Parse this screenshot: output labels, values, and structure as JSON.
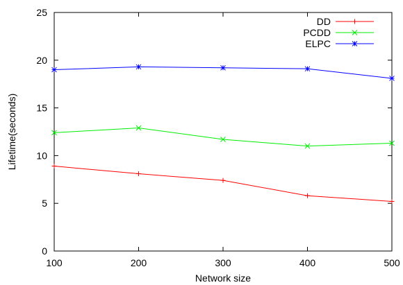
{
  "chart_data": {
    "type": "line",
    "xlabel": "Network size",
    "ylabel": "Lifetime(seconds)",
    "x": [
      100,
      200,
      300,
      400,
      500
    ],
    "xlim": [
      100,
      500
    ],
    "ylim": [
      0,
      25
    ],
    "x_ticks": [
      "100",
      "200",
      "300",
      "400",
      "500"
    ],
    "y_ticks": [
      "0",
      "5",
      "10",
      "15",
      "20",
      "25"
    ],
    "grid": false,
    "legend_position": "top-right",
    "series": [
      {
        "name": "DD",
        "color": "#ff0000",
        "marker": "plus",
        "values": [
          8.9,
          8.1,
          7.4,
          5.8,
          5.2
        ]
      },
      {
        "name": "PCDD",
        "color": "#00ee00",
        "marker": "cross",
        "values": [
          12.4,
          12.9,
          11.7,
          11.0,
          11.3
        ]
      },
      {
        "name": "ELPC",
        "color": "#0000ff",
        "marker": "star",
        "values": [
          19.0,
          19.3,
          19.2,
          19.1,
          18.1
        ]
      }
    ]
  }
}
